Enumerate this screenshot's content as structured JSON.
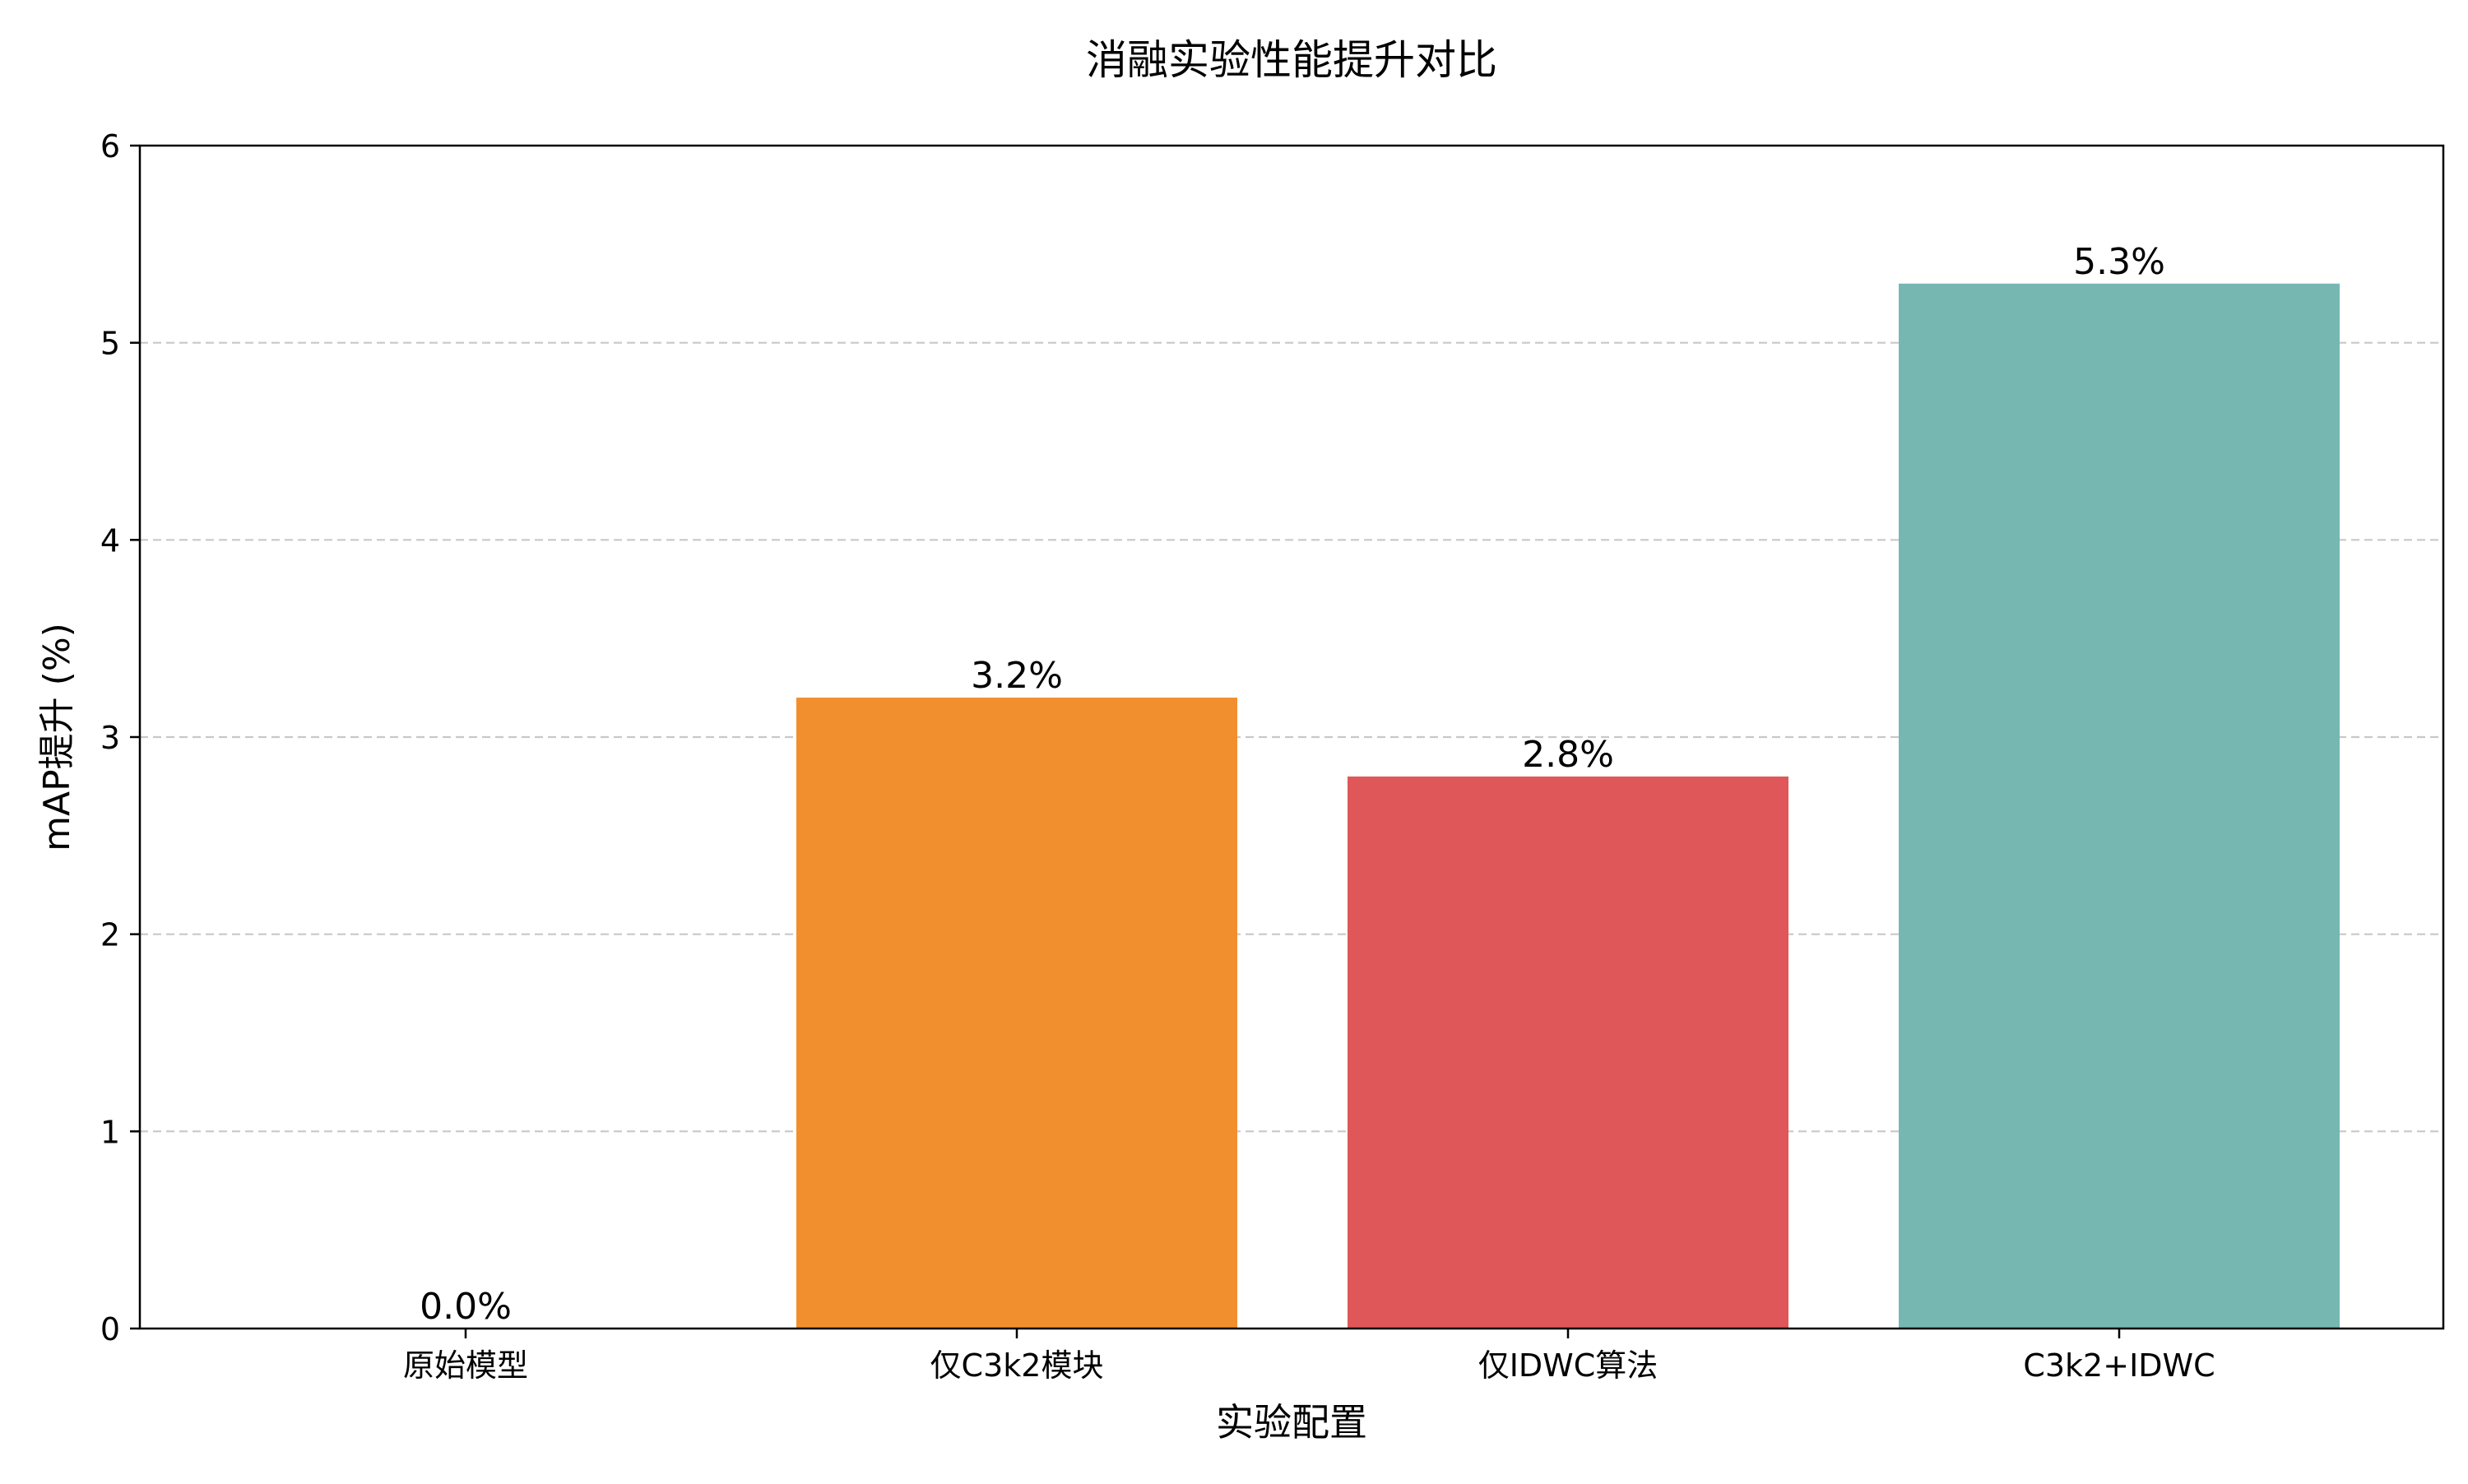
{
  "chart_data": {
    "type": "bar",
    "title": "消融实验性能提升对比",
    "xlabel": "实验配置",
    "ylabel": "mAP提升 (%)",
    "categories": [
      "原始模型",
      "仅C3k2模块",
      "仅IDWC算法",
      "C3k2+IDWC"
    ],
    "values": [
      0.0,
      3.2,
      2.8,
      5.3
    ],
    "value_labels": [
      "0.0%",
      "3.2%",
      "2.8%",
      "5.3%"
    ],
    "bar_colors": [
      "#2E86AB",
      "#F18F2E",
      "#E05759",
      "#76B7B2"
    ],
    "ylim": [
      0,
      6
    ],
    "yticks": [
      0,
      1,
      2,
      3,
      4,
      5,
      6
    ],
    "grid": "y-dashed",
    "legend": "none"
  }
}
